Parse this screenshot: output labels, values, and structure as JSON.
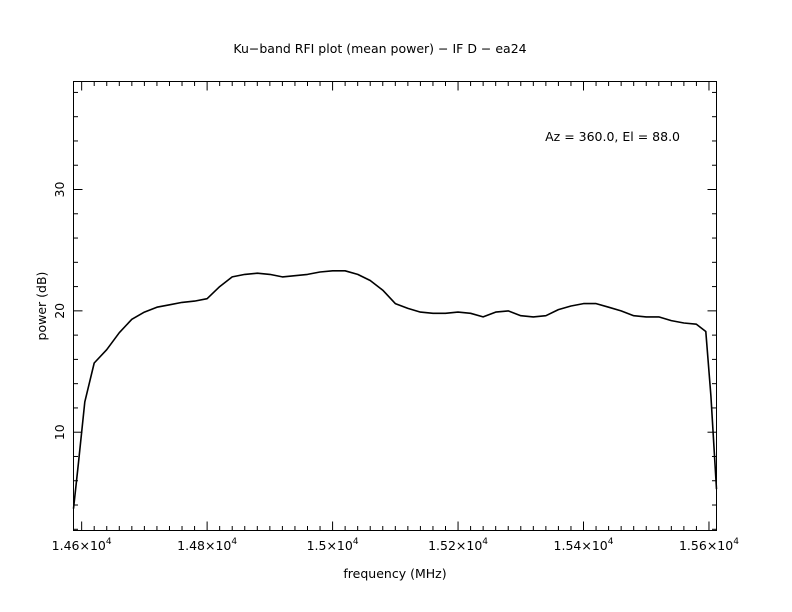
{
  "chart_data": {
    "type": "line",
    "title": "Ku−band RFI plot (mean power) − IF D − ea24",
    "xlabel": "frequency (MHz)",
    "ylabel": "power (dB)",
    "annotation": "Az = 360.0, El = 88.0",
    "xlim": [
      14587,
      15612
    ],
    "ylim": [
      1.9,
      38.9
    ],
    "x_ticks": [
      {
        "value": 14600,
        "mantissa": "1.46",
        "exp": "4"
      },
      {
        "value": 14800,
        "mantissa": "1.48",
        "exp": "4"
      },
      {
        "value": 15000,
        "mantissa": "1.5",
        "exp": "4"
      },
      {
        "value": 15200,
        "mantissa": "1.52",
        "exp": "4"
      },
      {
        "value": 15400,
        "mantissa": "1.54",
        "exp": "4"
      },
      {
        "value": 15600,
        "mantissa": "1.56",
        "exp": "4"
      }
    ],
    "y_ticks": [
      {
        "value": 10,
        "label": "10"
      },
      {
        "value": 20,
        "label": "20"
      },
      {
        "value": 30,
        "label": "30"
      }
    ],
    "grid": false,
    "series": [
      {
        "x": [
          14587,
          14595,
          14605,
          14620,
          14640,
          14660,
          14680,
          14700,
          14720,
          14740,
          14760,
          14780,
          14800,
          14820,
          14840,
          14860,
          14880,
          14900,
          14920,
          14940,
          14960,
          14980,
          15000,
          15020,
          15040,
          15060,
          15080,
          15100,
          15120,
          15140,
          15160,
          15180,
          15200,
          15220,
          15240,
          15260,
          15280,
          15300,
          15320,
          15340,
          15360,
          15380,
          15400,
          15420,
          15440,
          15460,
          15480,
          15500,
          15520,
          15540,
          15560,
          15580,
          15595,
          15603,
          15612
        ],
        "values": [
          3.7,
          7.5,
          12.5,
          15.7,
          16.8,
          18.2,
          19.3,
          19.9,
          20.3,
          20.5,
          20.7,
          20.8,
          21.0,
          22.0,
          22.8,
          23.0,
          23.1,
          23.0,
          22.8,
          22.9,
          23.0,
          23.2,
          23.3,
          23.3,
          23.0,
          22.5,
          21.7,
          20.6,
          20.2,
          19.9,
          19.8,
          19.8,
          19.9,
          19.8,
          19.5,
          19.9,
          20.0,
          19.6,
          19.5,
          19.6,
          20.1,
          20.4,
          20.6,
          20.6,
          20.3,
          20.0,
          19.6,
          19.5,
          19.5,
          19.2,
          19.0,
          18.9,
          18.3,
          13.0,
          5.3
        ]
      }
    ]
  }
}
